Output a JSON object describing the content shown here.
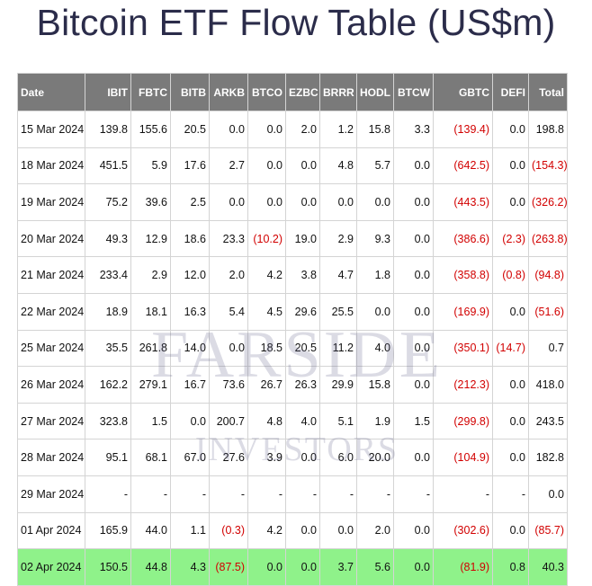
{
  "page": {
    "title": "Bitcoin ETF Flow Table (US$m)"
  },
  "table": {
    "columns": [
      "Date",
      "IBIT",
      "FBTC",
      "BITB",
      "ARKB",
      "BTCO",
      "EZBC",
      "BRRR",
      "HODL",
      "BTCW",
      "GBTC",
      "DEFI",
      "Total"
    ],
    "rows": [
      [
        "15 Mar 2024",
        "139.8",
        "155.6",
        "20.5",
        "0.0",
        "0.0",
        "2.0",
        "1.2",
        "15.8",
        "3.3",
        "(139.4)",
        "0.0",
        "198.8"
      ],
      [
        "18 Mar 2024",
        "451.5",
        "5.9",
        "17.6",
        "2.7",
        "0.0",
        "0.0",
        "4.8",
        "5.7",
        "0.0",
        "(642.5)",
        "0.0",
        "(154.3)"
      ],
      [
        "19 Mar 2024",
        "75.2",
        "39.6",
        "2.5",
        "0.0",
        "0.0",
        "0.0",
        "0.0",
        "0.0",
        "0.0",
        "(443.5)",
        "0.0",
        "(326.2)"
      ],
      [
        "20 Mar 2024",
        "49.3",
        "12.9",
        "18.6",
        "23.3",
        "(10.2)",
        "19.0",
        "2.9",
        "9.3",
        "0.0",
        "(386.6)",
        "(2.3)",
        "(263.8)"
      ],
      [
        "21 Mar 2024",
        "233.4",
        "2.9",
        "12.0",
        "2.0",
        "4.2",
        "3.8",
        "4.7",
        "1.8",
        "0.0",
        "(358.8)",
        "(0.8)",
        "(94.8)"
      ],
      [
        "22 Mar 2024",
        "18.9",
        "18.1",
        "16.3",
        "5.4",
        "4.5",
        "29.6",
        "25.5",
        "0.0",
        "0.0",
        "(169.9)",
        "0.0",
        "(51.6)"
      ],
      [
        "25 Mar 2024",
        "35.5",
        "261.8",
        "14.0",
        "0.0",
        "18.5",
        "20.5",
        "11.2",
        "4.0",
        "0.0",
        "(350.1)",
        "(14.7)",
        "0.7"
      ],
      [
        "26 Mar 2024",
        "162.2",
        "279.1",
        "16.7",
        "73.6",
        "26.7",
        "26.3",
        "29.9",
        "15.8",
        "0.0",
        "(212.3)",
        "0.0",
        "418.0"
      ],
      [
        "27 Mar 2024",
        "323.8",
        "1.5",
        "0.0",
        "200.7",
        "4.8",
        "4.0",
        "5.1",
        "1.9",
        "1.5",
        "(299.8)",
        "0.0",
        "243.5"
      ],
      [
        "28 Mar 2024",
        "95.1",
        "68.1",
        "67.0",
        "27.6",
        "3.9",
        "0.0",
        "6.0",
        "20.0",
        "0.0",
        "(104.9)",
        "0.0",
        "182.8"
      ],
      [
        "29 Mar 2024",
        "-",
        "-",
        "-",
        "-",
        "-",
        "-",
        "-",
        "-",
        "-",
        "-",
        "-",
        "0.0"
      ],
      [
        "01 Apr 2024",
        "165.9",
        "44.0",
        "1.1",
        "(0.3)",
        "4.2",
        "0.0",
        "0.0",
        "2.0",
        "0.0",
        "(302.6)",
        "0.0",
        "(85.7)"
      ],
      [
        "02 Apr 2024",
        "150.5",
        "44.8",
        "4.3",
        "(87.5)",
        "0.0",
        "0.0",
        "3.7",
        "5.6",
        "0.0",
        "(81.9)",
        "0.8",
        "40.3"
      ]
    ],
    "highlighted_row_index": 12
  },
  "watermark": {
    "line1": "FARSIDE",
    "line2": "INVESTORS"
  },
  "colors": {
    "header_bg": "#7a7a7a",
    "header_text": "#ffffff",
    "negative_text": "#d20000",
    "highlight_row_bg": "#8ff28a",
    "title_text": "#2b2c4a"
  }
}
